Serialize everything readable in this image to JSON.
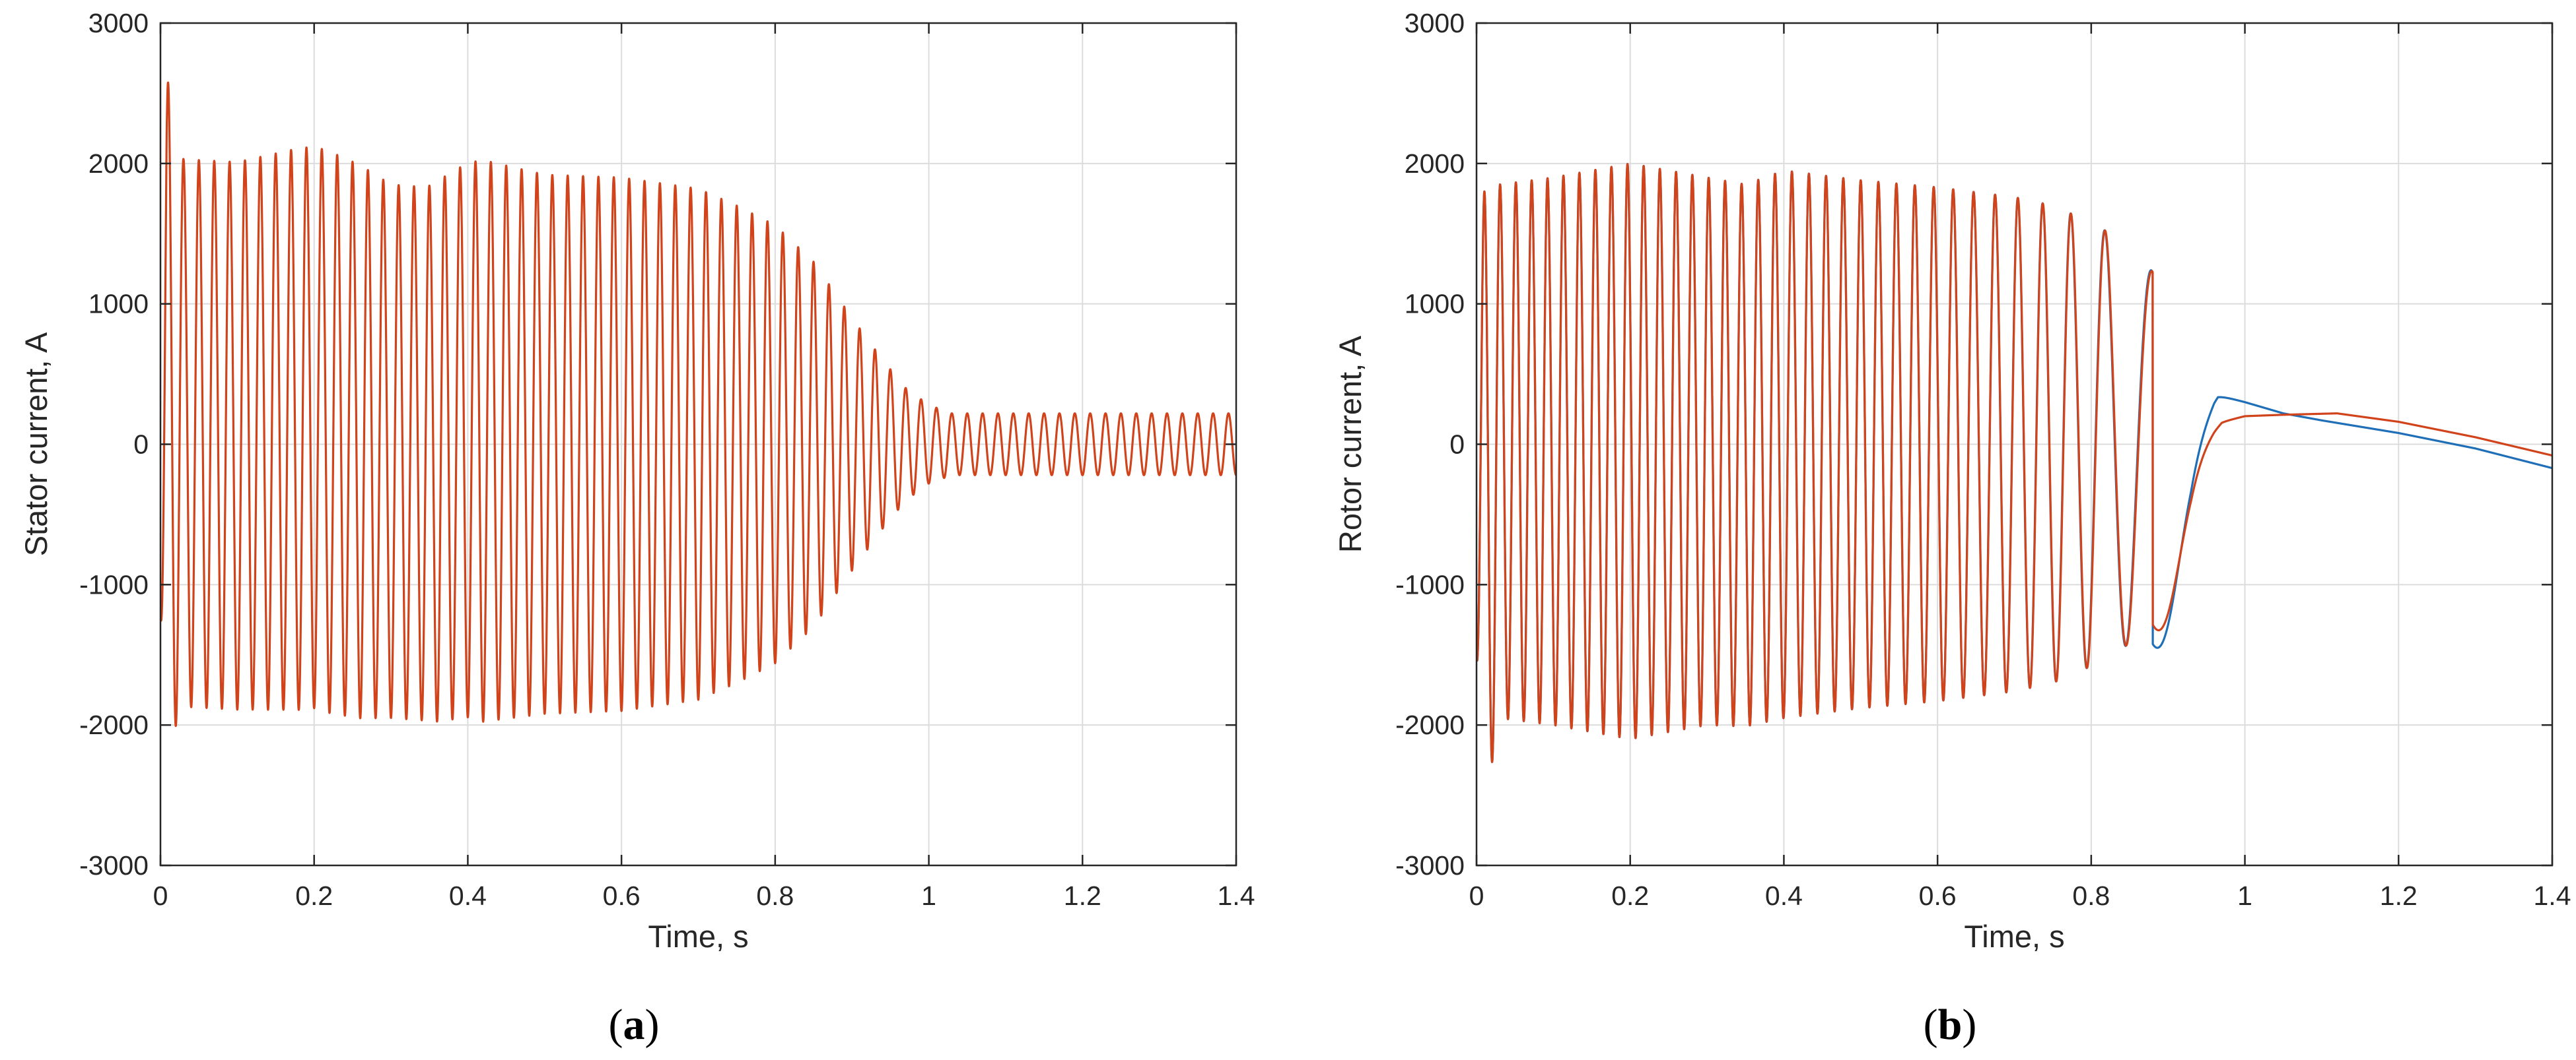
{
  "chart_data": [
    {
      "type": "line",
      "panel_label": "a",
      "xlabel": "Time, s",
      "ylabel": "Stator current, A",
      "xlim": [
        0,
        1.4
      ],
      "ylim": [
        -3000,
        3000
      ],
      "xticks": [
        "0",
        "0.2",
        "0.4",
        "0.6",
        "0.8",
        "1",
        "1.2",
        "1.4"
      ],
      "yticks": [
        "3000",
        "2000",
        "1000",
        "0",
        "-1000",
        "-2000",
        "-3000"
      ],
      "grid": true,
      "signal": {
        "frequency_hz": 50,
        "envelope_t": [
          0,
          0.008,
          0.03,
          0.1,
          0.18,
          0.22,
          0.26,
          0.3,
          0.34,
          0.38,
          0.42,
          0.5,
          0.6,
          0.7,
          0.75,
          0.8,
          0.85,
          0.9,
          0.94,
          0.97,
          1.0,
          1.03,
          1.1,
          1.4
        ],
        "envelope_a": [
          1200,
          2400,
          1950,
          1950,
          2000,
          2000,
          1970,
          1900,
          1900,
          1950,
          2000,
          1920,
          1900,
          1820,
          1700,
          1560,
          1300,
          900,
          600,
          400,
          280,
          220,
          220,
          220
        ],
        "offset_t": [
          0,
          0.008,
          0.03,
          0.1,
          0.2,
          0.3,
          0.35,
          0.4,
          0.5,
          1.4
        ],
        "offset_a": [
          0,
          230,
          80,
          60,
          120,
          -50,
          -70,
          30,
          0,
          0
        ]
      },
      "series": [
        {
          "color": "#d0431b",
          "phase_shift": 0
        }
      ]
    },
    {
      "type": "line",
      "panel_label": "b",
      "xlabel": "Time, s",
      "ylabel": "Rotor current, A",
      "xlim": [
        0,
        1.4
      ],
      "ylim": [
        -3000,
        3000
      ],
      "xticks": [
        "0",
        "0.2",
        "0.4",
        "0.6",
        "0.8",
        "1",
        "1.2",
        "1.4"
      ],
      "yticks": [
        "3000",
        "2000",
        "1000",
        "0",
        "-1000",
        "-2000",
        "-3000"
      ],
      "grid": true,
      "signal": {
        "freq_t": [
          0,
          0.3,
          0.5,
          0.6,
          0.7,
          0.75,
          0.8,
          0.85,
          0.9,
          0.95
        ],
        "freq_hz": [
          49,
          47,
          44,
          40,
          33,
          28,
          22,
          16,
          11,
          6
        ],
        "envelope_t": [
          0,
          0.01,
          0.03,
          0.1,
          0.2,
          0.3,
          0.35,
          0.4,
          0.5,
          0.6,
          0.7,
          0.75,
          0.8,
          0.85,
          0.9
        ],
        "envelope_a": [
          1500,
          2200,
          1900,
          1950,
          2050,
          1950,
          1930,
          1950,
          1880,
          1830,
          1760,
          1700,
          1580,
          1420,
          1100
        ],
        "offset_t": [
          0,
          0.01,
          0.03,
          0.3,
          0.35,
          0.4,
          1.4
        ],
        "offset_a": [
          0,
          -400,
          -50,
          -50,
          -80,
          0,
          0
        ],
        "handoff_t": 0.88,
        "tail_blue_t": [
          0.93,
          0.965,
          1.0,
          1.05,
          1.1,
          1.2,
          1.3,
          1.4
        ],
        "tail_blue_a": [
          120,
          350,
          300,
          220,
          170,
          80,
          -30,
          -170
        ],
        "tail_red_t": [
          0.93,
          0.97,
          1.0,
          1.05,
          1.12,
          1.2,
          1.3,
          1.4
        ],
        "tail_red_a": [
          -50,
          160,
          200,
          210,
          220,
          160,
          50,
          -80
        ]
      },
      "series": [
        {
          "color": "#1f6fb8",
          "phase_shift": 0.025
        },
        {
          "color": "#d0431b",
          "phase_shift": 0
        }
      ]
    }
  ]
}
